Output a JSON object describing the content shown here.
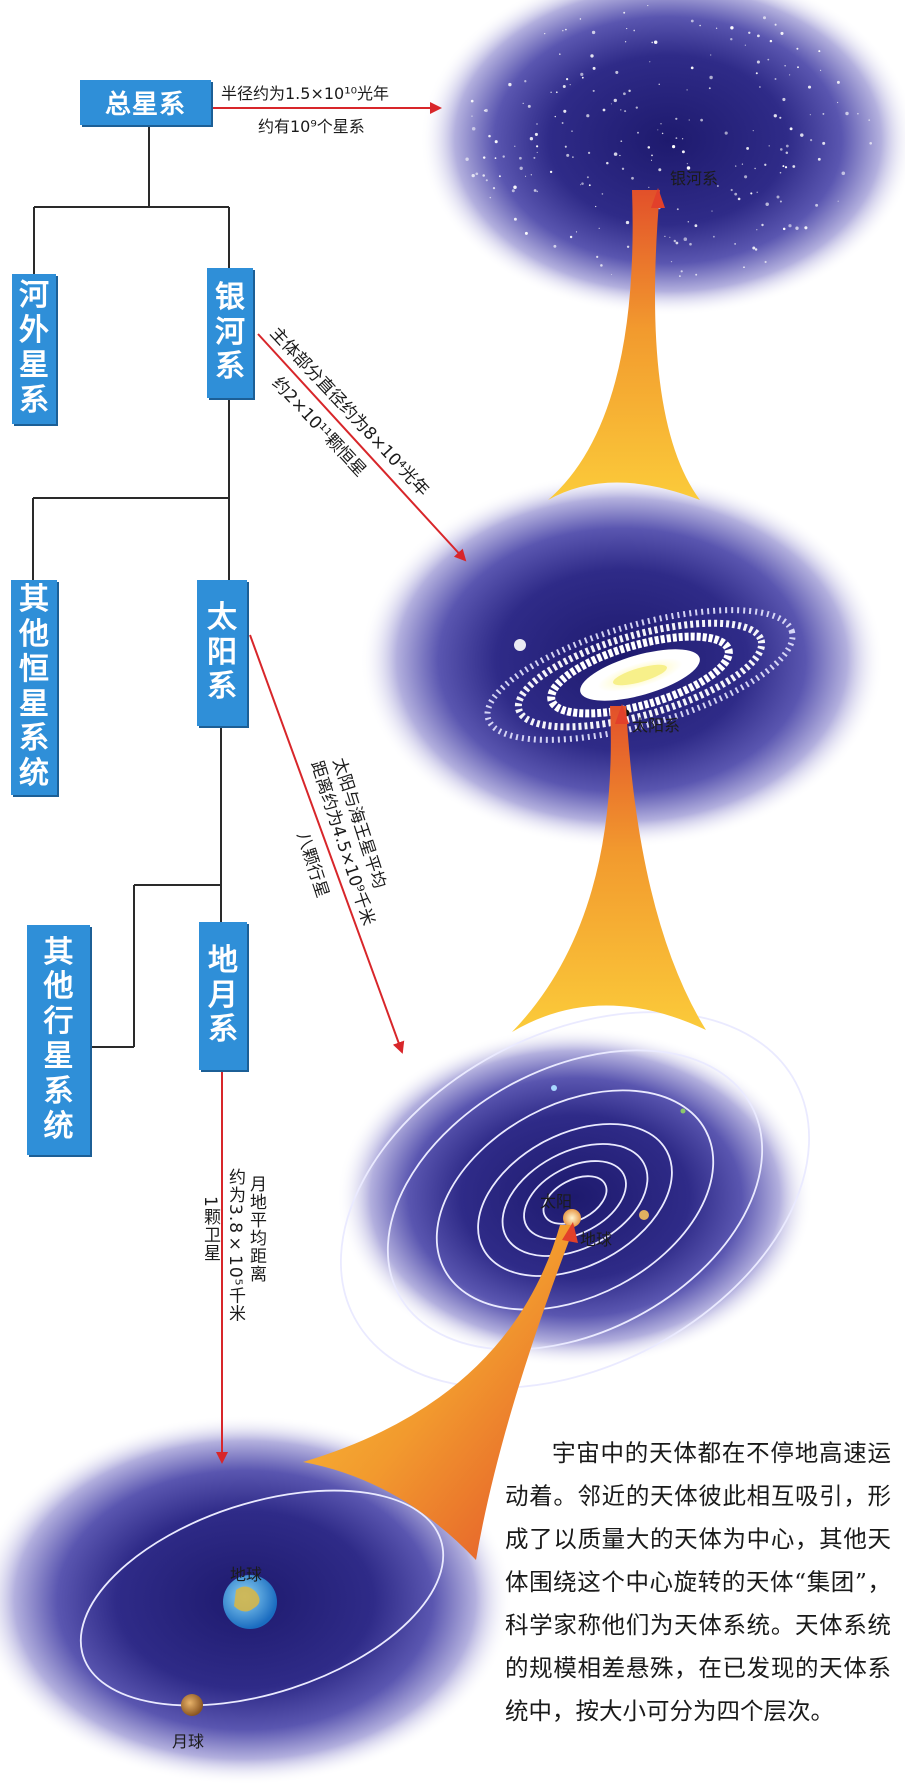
{
  "nodes": {
    "universe": "总星系",
    "extragalactic": "河外星系",
    "milky_way": "银河系",
    "other_stellar": "其他恒星系统",
    "solar_system": "太阳系",
    "other_planetary": "其他行星系统",
    "earth_moon": "地月系"
  },
  "annotations": {
    "universe_radius": "半径约为1.5×10¹⁰光年",
    "universe_galaxies": "约有10⁹个星系",
    "galaxy_diameter": "主体部分直径约为8×10⁴光年",
    "galaxy_stars": "约2×10¹¹颗恒星",
    "solar_distance": "太阳与海王星平均",
    "solar_distance_value": "距离约为4.5×10⁹千米",
    "solar_planets": "八颗行星",
    "moon_distance": "月地平均距离",
    "moon_distance_value": "约为3.8×10⁵千米",
    "moon_satellite": "1颗卫星"
  },
  "picture_labels": {
    "milky_way": "银河系",
    "sun_in_galaxy": "太阳系",
    "sun": "太阳",
    "earth_in_solar": "地球",
    "earth": "地球",
    "moon": "月球"
  },
  "paragraph": "宇宙中的天体都在不停地高速运动着。邻近的天体彼此相互吸引，形成了以质量大的天体为中心，其他天体围绕这个中心旋转的天体“集团”，科学家称他们为天体系统。天体系统的规模相差悬殊，在已发现的天体系统中，按大小可分为四个层次。",
  "colors": {
    "box": "#2f8fd8",
    "connector": "#2a2a2a",
    "arrow": "#d8262a",
    "space": "#2f2b80",
    "glow_orange": "#f29a2e"
  }
}
